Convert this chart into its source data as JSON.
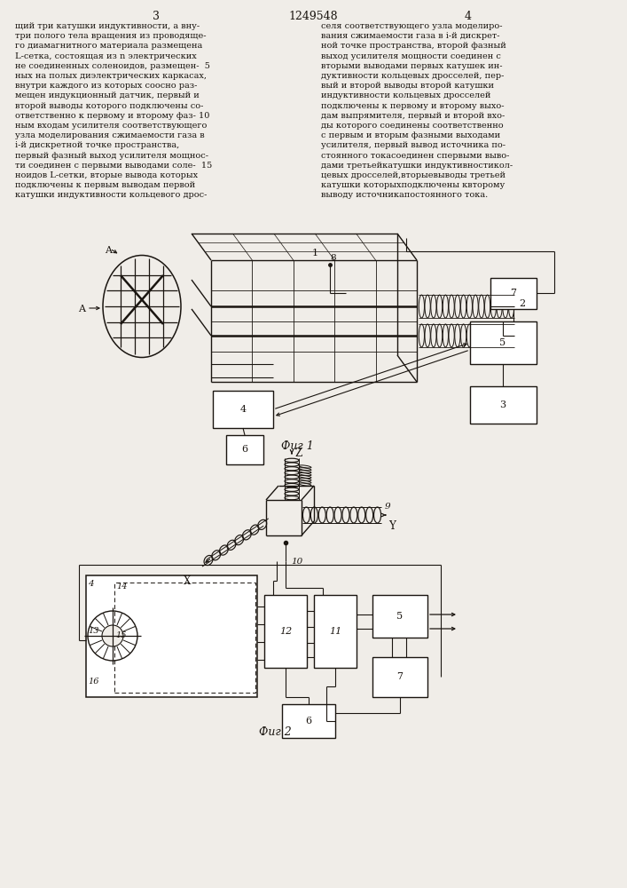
{
  "background_color": "#f0ede8",
  "line_color": "#1a1510",
  "text_color": "#1a1510",
  "fig1_label": "Фиг 1",
  "fig2_label": "Фиг 2",
  "left_text": [
    "щий три катушки индуктивности, а вну-",
    "три полого тела вращения из проводяще-",
    "го диамагнитного материала размещена",
    "L-сетка, состоящая из n электрических",
    "не соединенных соленоидов, размещен-  5",
    "ных на полых диэлектрических каркасах,",
    "внутри каждого из которых соосно раз-",
    "мещен индукционный датчик, первый и",
    "второй выводы которого подключены со-",
    "ответственно к первому и второму фаз- 10",
    "ным входам усилителя соответствующего",
    "узла моделирования сжимаемости газа в",
    "i-й дискретной точке пространства,",
    "первый фазный выход усилителя мощнос-",
    "ти соединен с первыми выводами соле-  15",
    "ноидов L-сетки, вторые вывода которых",
    "подключены к первым выводам первой",
    "катушки индуктивности кольцевого дрос-"
  ],
  "right_text": [
    "селя соответствующего узла моделиро-",
    "вания сжимаемости газа в i-й дискрет-",
    "ной точке пространства, второй фазный",
    "выход усилителя мощности соединен с",
    "вторыми выводами первых катушек ин-",
    "дуктивности кольцевых дросселей, пер-",
    "вый и второй выводы второй катушки",
    "индуктивности кольцевых дросселей",
    "подключены к первому и второму выхо-",
    "дам выпрямителя, первый и второй вхо-",
    "ды которого соединены соответственно",
    "с первым и вторым фазными выходами",
    "усилителя, первый вывод источника по-",
    "стоянного токасоединен спервыми выво-",
    "дами третьейкатушки индуктивностикол-",
    "цевых дросселей,вторыевыводы третьей",
    "катушки которыхподключены квторому",
    "выводу источникапостоянного тока."
  ],
  "page_num_left": "3",
  "page_title": "1249548",
  "page_num_right": "4"
}
